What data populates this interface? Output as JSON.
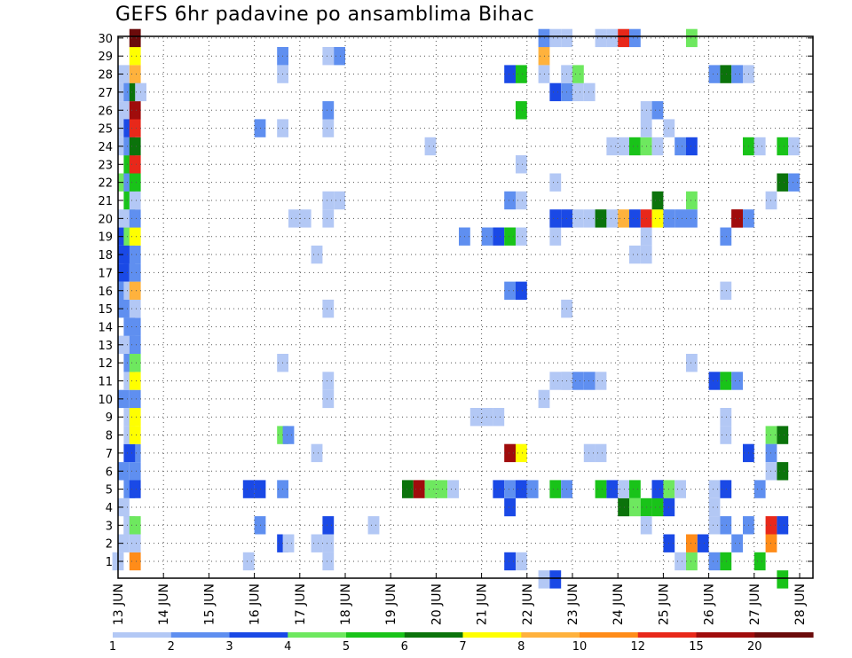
{
  "title": "GEFS 6hr padavine po ansamblima Bihac",
  "chart_data": {
    "type": "heatmap",
    "title": "GEFS 6hr padavine po ansamblima Bihac",
    "xlabel": "",
    "ylabel": "",
    "x_tick_labels": [
      "13 JUN",
      "14 JUN",
      "15 JUN",
      "16 JUN",
      "17 JUN",
      "18 JUN",
      "19 JUN",
      "20 JUN",
      "21 JUN",
      "22 JUN",
      "23 JUN",
      "24 JUN",
      "25 JUN",
      "26 JUN",
      "27 JUN",
      "28 JUN"
    ],
    "y_tick_labels": [
      "1",
      "2",
      "3",
      "4",
      "5",
      "6",
      "7",
      "8",
      "9",
      "10",
      "11",
      "12",
      "13",
      "14",
      "15",
      "16",
      "17",
      "18",
      "19",
      "20",
      "21",
      "22",
      "23",
      "24",
      "25",
      "26",
      "27",
      "28",
      "29",
      "30"
    ],
    "xlim_days": [
      0,
      15.375
    ],
    "ylim_members": [
      0.3,
      30.2
    ],
    "grid": true,
    "colorbar": {
      "labels": [
        "1",
        "2",
        "3",
        "4",
        "5",
        "6",
        "7",
        "8",
        "10",
        "12",
        "15",
        "20"
      ],
      "colors": [
        "#b3c8f5",
        "#5f8ff0",
        "#1a49e6",
        "#6ee85f",
        "#19c319",
        "#0b730b",
        "#ffff00",
        "#ffb23d",
        "#ff8c19",
        "#e8281a",
        "#a00c0c",
        "#6b0b0b"
      ]
    },
    "cell_width_days": 0.25,
    "cells": [
      [
        0,
        1,
        1
      ],
      [
        0.125,
        2,
        1
      ],
      [
        0.25,
        3,
        2
      ],
      [
        0.375,
        7,
        2
      ],
      [
        0.125,
        4,
        1
      ],
      [
        0.125,
        6,
        2
      ],
      [
        0.125,
        10,
        2
      ],
      [
        0.125,
        13,
        1
      ],
      [
        0.125,
        15,
        2
      ],
      [
        0.125,
        16,
        2
      ],
      [
        0.125,
        17,
        3
      ],
      [
        0.125,
        18,
        3
      ],
      [
        0.125,
        19,
        3
      ],
      [
        0.125,
        20,
        1
      ],
      [
        0.125,
        22,
        4
      ],
      [
        0.125,
        24,
        1
      ],
      [
        0.125,
        25,
        1
      ],
      [
        0.125,
        26,
        1
      ],
      [
        0.125,
        27,
        1
      ],
      [
        0.125,
        28,
        1
      ],
      [
        0.25,
        3,
        1
      ],
      [
        0.25,
        5,
        2
      ],
      [
        0.25,
        7,
        3
      ],
      [
        0.25,
        8,
        1
      ],
      [
        0.25,
        9,
        1
      ],
      [
        0.25,
        11,
        1
      ],
      [
        0.25,
        12,
        2
      ],
      [
        0.25,
        14,
        2
      ],
      [
        0.25,
        15,
        2
      ],
      [
        0.25,
        16,
        1
      ],
      [
        0.25,
        18,
        3
      ],
      [
        0.25,
        19,
        4
      ],
      [
        0.25,
        20,
        1
      ],
      [
        0.25,
        21,
        5
      ],
      [
        0.25,
        22,
        2
      ],
      [
        0.25,
        23,
        5
      ],
      [
        0.25,
        24,
        2
      ],
      [
        0.25,
        25,
        3
      ],
      [
        0.25,
        27,
        2
      ],
      [
        0.375,
        1,
        9
      ],
      [
        0.375,
        2,
        1
      ],
      [
        0.375,
        3,
        4
      ],
      [
        0.375,
        5,
        3
      ],
      [
        0.375,
        6,
        2
      ],
      [
        0.375,
        8,
        7
      ],
      [
        0.375,
        9,
        7
      ],
      [
        0.375,
        10,
        2
      ],
      [
        0.375,
        11,
        7
      ],
      [
        0.375,
        12,
        4
      ],
      [
        0.375,
        13,
        2
      ],
      [
        0.375,
        14,
        2
      ],
      [
        0.375,
        15,
        1
      ],
      [
        0.375,
        16,
        8
      ],
      [
        0.375,
        17,
        2
      ],
      [
        0.375,
        18,
        2
      ],
      [
        0.375,
        19,
        7
      ],
      [
        0.375,
        20,
        2
      ],
      [
        0.375,
        21,
        1
      ],
      [
        0.375,
        22,
        5
      ],
      [
        0.375,
        23,
        10
      ],
      [
        0.375,
        24,
        6
      ],
      [
        0.375,
        25,
        10
      ],
      [
        0.375,
        26,
        11
      ],
      [
        0.375,
        27,
        6
      ],
      [
        0.375,
        28,
        8
      ],
      [
        0.375,
        29,
        7
      ],
      [
        0.375,
        30,
        12
      ],
      [
        0.5,
        27,
        1
      ],
      [
        2.875,
        1,
        1
      ],
      [
        2.875,
        5,
        3
      ],
      [
        3.125,
        5,
        3
      ],
      [
        3.125,
        3,
        2
      ],
      [
        3.125,
        25,
        2
      ],
      [
        3.625,
        2,
        3
      ],
      [
        3.625,
        5,
        2
      ],
      [
        3.625,
        8,
        4
      ],
      [
        3.625,
        12,
        1
      ],
      [
        3.625,
        25,
        1
      ],
      [
        3.625,
        28,
        1
      ],
      [
        3.625,
        29,
        2
      ],
      [
        3.75,
        8,
        2
      ],
      [
        3.75,
        2,
        1
      ],
      [
        3.875,
        20,
        1
      ],
      [
        4.125,
        20,
        1
      ],
      [
        4.375,
        7,
        1
      ],
      [
        4.375,
        18,
        1
      ],
      [
        4.375,
        2,
        1
      ],
      [
        4.625,
        1,
        1
      ],
      [
        4.625,
        2,
        1
      ],
      [
        4.625,
        3,
        3
      ],
      [
        4.625,
        10,
        1
      ],
      [
        4.625,
        11,
        1
      ],
      [
        4.625,
        15,
        1
      ],
      [
        4.625,
        20,
        1
      ],
      [
        4.625,
        21,
        1
      ],
      [
        4.625,
        25,
        1
      ],
      [
        4.625,
        26,
        2
      ],
      [
        4.625,
        29,
        1
      ],
      [
        4.875,
        21,
        1
      ],
      [
        4.875,
        29,
        2
      ],
      [
        5.625,
        3,
        1
      ],
      [
        6.875,
        24,
        1
      ],
      [
        6.375,
        5,
        6
      ],
      [
        6.625,
        5,
        11
      ],
      [
        6.875,
        5,
        4
      ],
      [
        7.125,
        5,
        4
      ],
      [
        7.375,
        5,
        1
      ],
      [
        7.625,
        19,
        2
      ],
      [
        7.875,
        9,
        1
      ],
      [
        8.125,
        9,
        1
      ],
      [
        8.125,
        19,
        2
      ],
      [
        8.375,
        9,
        1
      ],
      [
        8.375,
        19,
        3
      ],
      [
        8.375,
        5,
        3
      ],
      [
        8.625,
        1,
        3
      ],
      [
        8.625,
        4,
        3
      ],
      [
        8.625,
        5,
        2
      ],
      [
        8.625,
        7,
        11
      ],
      [
        8.625,
        19,
        5
      ],
      [
        8.625,
        21,
        2
      ],
      [
        8.625,
        28,
        3
      ],
      [
        8.875,
        1,
        1
      ],
      [
        8.875,
        5,
        3
      ],
      [
        8.875,
        7,
        7
      ],
      [
        8.875,
        16,
        3
      ],
      [
        8.875,
        19,
        1
      ],
      [
        8.875,
        21,
        1
      ],
      [
        8.875,
        23,
        1
      ],
      [
        8.875,
        26,
        5
      ],
      [
        8.875,
        28,
        5
      ],
      [
        9.125,
        5,
        2
      ],
      [
        8.625,
        16,
        2
      ],
      [
        9.375,
        0,
        1
      ],
      [
        9.625,
        0,
        3
      ],
      [
        9.375,
        10,
        1
      ],
      [
        9.375,
        28,
        1
      ],
      [
        9.375,
        29,
        8
      ],
      [
        9.375,
        30,
        2
      ],
      [
        9.625,
        30,
        1
      ],
      [
        9.875,
        30,
        1
      ],
      [
        9.625,
        5,
        5
      ],
      [
        9.625,
        19,
        1
      ],
      [
        9.625,
        11,
        1
      ],
      [
        9.625,
        20,
        3
      ],
      [
        9.625,
        22,
        1
      ],
      [
        9.625,
        27,
        3
      ],
      [
        9.875,
        5,
        2
      ],
      [
        9.875,
        11,
        1
      ],
      [
        9.875,
        15,
        1
      ],
      [
        9.875,
        20,
        3
      ],
      [
        9.875,
        27,
        2
      ],
      [
        9.875,
        28,
        1
      ],
      [
        9.875,
        11,
        1
      ],
      [
        10.125,
        11,
        2
      ],
      [
        10.125,
        20,
        1
      ],
      [
        10.125,
        27,
        1
      ],
      [
        10.125,
        28,
        4
      ],
      [
        10.375,
        11,
        2
      ],
      [
        10.375,
        20,
        1
      ],
      [
        10.375,
        27,
        1
      ],
      [
        10.625,
        11,
        1
      ],
      [
        10.625,
        20,
        6
      ],
      [
        10.625,
        30,
        1
      ],
      [
        10.375,
        7,
        1
      ],
      [
        10.625,
        7,
        1
      ],
      [
        10.625,
        5,
        5
      ],
      [
        10.875,
        5,
        3
      ],
      [
        10.875,
        20,
        1
      ],
      [
        10.875,
        24,
        1
      ],
      [
        10.875,
        30,
        1
      ],
      [
        11.125,
        4,
        6
      ],
      [
        11.125,
        5,
        1
      ],
      [
        11.125,
        20,
        8
      ],
      [
        11.125,
        24,
        1
      ],
      [
        11.125,
        30,
        10
      ],
      [
        11.375,
        4,
        4
      ],
      [
        11.375,
        20,
        3
      ],
      [
        11.375,
        24,
        5
      ],
      [
        11.375,
        5,
        5
      ],
      [
        11.375,
        18,
        1
      ],
      [
        11.375,
        30,
        2
      ],
      [
        11.625,
        4,
        5
      ],
      [
        11.625,
        20,
        10
      ],
      [
        11.625,
        24,
        4
      ],
      [
        11.625,
        18,
        1
      ],
      [
        11.625,
        25,
        1
      ],
      [
        11.625,
        3,
        1
      ],
      [
        11.625,
        19,
        1
      ],
      [
        11.625,
        26,
        1
      ],
      [
        11.875,
        4,
        5
      ],
      [
        11.875,
        5,
        3
      ],
      [
        11.875,
        20,
        7
      ],
      [
        11.875,
        21,
        6
      ],
      [
        11.875,
        26,
        2
      ],
      [
        11.875,
        5,
        3
      ],
      [
        11.875,
        24,
        1
      ],
      [
        12.125,
        5,
        4
      ],
      [
        12.125,
        4,
        3
      ],
      [
        12.125,
        25,
        1
      ],
      [
        12.125,
        2,
        3
      ],
      [
        12.125,
        20,
        2
      ],
      [
        12.375,
        1,
        1
      ],
      [
        12.375,
        5,
        1
      ],
      [
        12.375,
        20,
        2
      ],
      [
        12.375,
        24,
        2
      ],
      [
        12.625,
        24,
        3
      ],
      [
        12.625,
        1,
        4
      ],
      [
        12.625,
        2,
        9
      ],
      [
        12.625,
        21,
        4
      ],
      [
        12.625,
        12,
        1
      ],
      [
        12.625,
        30,
        4
      ],
      [
        12.625,
        20,
        2
      ],
      [
        12.875,
        2,
        3
      ],
      [
        13.125,
        1,
        2
      ],
      [
        13.125,
        3,
        1
      ],
      [
        13.125,
        4,
        1
      ],
      [
        13.125,
        5,
        1
      ],
      [
        13.125,
        28,
        2
      ],
      [
        13.125,
        11,
        3
      ],
      [
        13.375,
        1,
        5
      ],
      [
        13.375,
        11,
        5
      ],
      [
        13.375,
        28,
        6
      ],
      [
        13.375,
        5,
        3
      ],
      [
        13.375,
        8,
        1
      ],
      [
        13.375,
        9,
        1
      ],
      [
        13.375,
        3,
        2
      ],
      [
        13.375,
        16,
        1
      ],
      [
        13.375,
        19,
        2
      ],
      [
        13.625,
        11,
        2
      ],
      [
        13.625,
        20,
        11
      ],
      [
        13.625,
        28,
        2
      ],
      [
        13.625,
        20,
        11
      ],
      [
        13.625,
        2,
        2
      ],
      [
        13.875,
        20,
        2
      ],
      [
        13.875,
        24,
        5
      ],
      [
        13.875,
        7,
        3
      ],
      [
        13.875,
        3,
        2
      ],
      [
        13.875,
        28,
        1
      ],
      [
        14.125,
        5,
        2
      ],
      [
        14.125,
        24,
        1
      ],
      [
        14.125,
        1,
        5
      ],
      [
        14.375,
        8,
        4
      ],
      [
        14.375,
        7,
        2
      ],
      [
        14.375,
        3,
        10
      ],
      [
        14.375,
        2,
        9
      ],
      [
        14.375,
        21,
        1
      ],
      [
        14.375,
        6,
        1
      ],
      [
        14.625,
        8,
        6
      ],
      [
        14.625,
        6,
        6
      ],
      [
        14.625,
        3,
        3
      ],
      [
        14.625,
        22,
        6
      ],
      [
        14.625,
        24,
        5
      ],
      [
        14.625,
        0,
        5
      ],
      [
        14.875,
        22,
        2
      ],
      [
        14.875,
        24,
        1
      ]
    ]
  }
}
